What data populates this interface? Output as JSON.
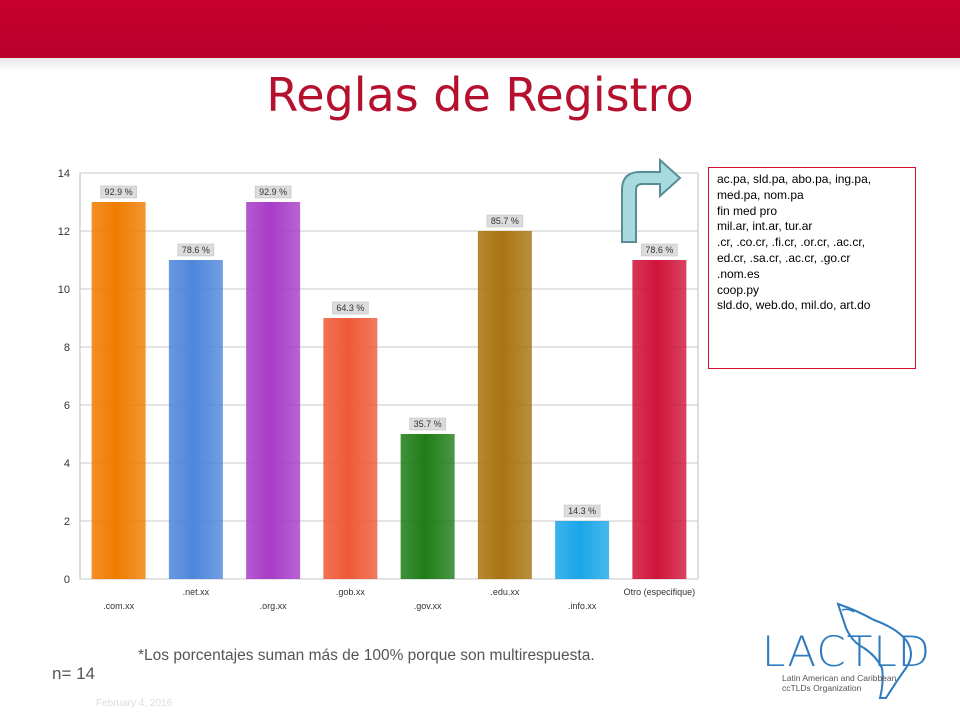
{
  "slide": {
    "title": "Reglas de Registro",
    "footnote": "*Los porcentajes suman más de 100% porque son multirespuesta.",
    "n_label": "n= 14",
    "date_label": "February 4, 2016"
  },
  "annotation": {
    "lines": [
      "ac.pa, sld.pa, abo.pa, ing.pa,",
      "med.pa, nom.pa",
      "fin med pro",
      "mil.ar, int.ar, tur.ar",
      ".cr, .co.cr, .fi.cr, .or.cr, .ac.cr,",
      "ed.cr, .sa.cr, .ac.cr, .go.cr",
      ".nom.es",
      "coop.py",
      "sld.do, web.do, mil.do, art.do"
    ]
  },
  "logo": {
    "name": "LACTLD",
    "subtitle_line1": "Latin American and Caribbean",
    "subtitle_line2": "ccTLDs Organization"
  },
  "chart_data": {
    "type": "bar",
    "categories": [
      ".com.xx",
      ".net.xx",
      ".org.xx",
      ".gob.xx",
      ".gov.xx",
      ".edu.xx",
      ".info.xx",
      "Otro (especifique)"
    ],
    "values": [
      13,
      11,
      13,
      9,
      5,
      12,
      2,
      11
    ],
    "data_labels": [
      "92.9 %",
      "78.6 %",
      "92.9 %",
      "64.3 %",
      "35.7 %",
      "85.7 %",
      "14.3 %",
      "78.6 %"
    ],
    "colors": [
      "#f07c00",
      "#4f86dc",
      "#a83cc8",
      "#ee5a38",
      "#1f7d18",
      "#a87410",
      "#1aa6e8",
      "#d0143a"
    ],
    "ylim": [
      0,
      14
    ],
    "yticks": [
      0,
      2,
      4,
      6,
      8,
      10,
      12,
      14
    ],
    "grid": true
  }
}
